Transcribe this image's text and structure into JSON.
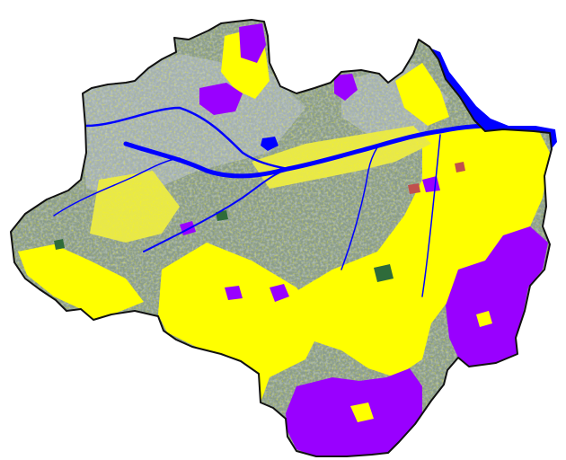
{
  "map": {
    "colors": {
      "background": "#ffffff",
      "forest": "#8a9c8c",
      "forest_light": "#a3b0b3",
      "forest_dark": "#6f8672",
      "pasture": "#ffff00",
      "pasture_soft": "#e8e84a",
      "agriculture": "#9900ff",
      "water": "#0000ff",
      "urban": "#c0504d",
      "dark_patch": "#2e6b3a",
      "border": "#111111"
    }
  }
}
